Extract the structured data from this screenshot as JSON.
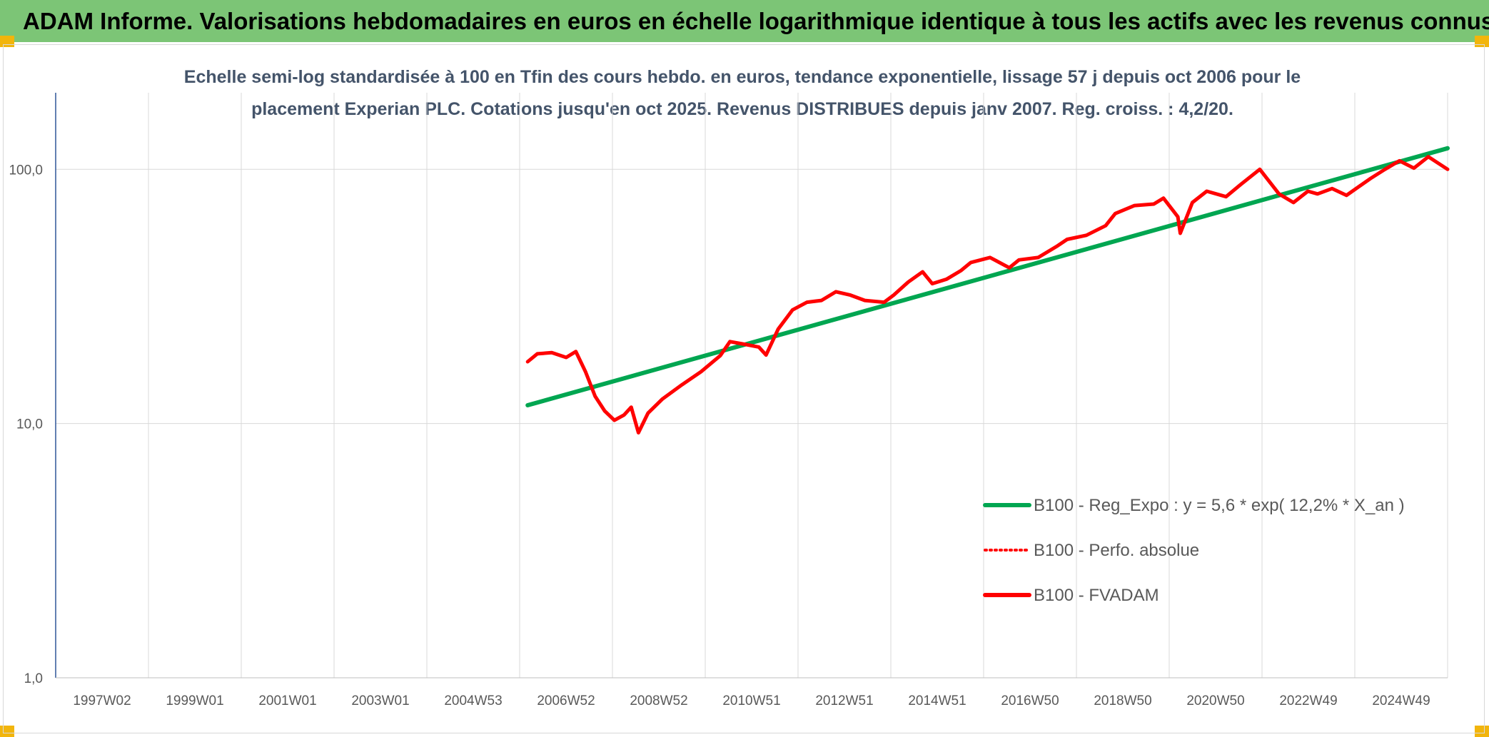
{
  "banner": {
    "text": "ADAM Informe. Valorisations hebdomadaires en euros en échelle logarithmique identique à tous les actifs avec les revenus connus distribués"
  },
  "colors": {
    "banner_bg": "#7cc576",
    "corner": "#f2b50c",
    "trend": "#00a651",
    "perf": "#ff0000",
    "fvadam": "#ff0000",
    "title": "#44546a",
    "grid": "#d9d9d9"
  },
  "chart_data": {
    "type": "line",
    "title_lines": [
      "Echelle semi-log standardisée à 100 en Tfin des cours hebdo. en euros, tendance exponentielle, lissage 57 j depuis oct 2006 pour le",
      "placement Experian PLC. Cotations jusqu'en oct 2025. Revenus DISTRIBUES depuis janv 2007. Reg. croiss. : 4,2/20."
    ],
    "y_scale": "log",
    "ylim": [
      1,
      200
    ],
    "y_ticks": [
      {
        "value": 100,
        "label": "100,0"
      },
      {
        "value": 10,
        "label": "10,0"
      },
      {
        "value": 1,
        "label": "1,0"
      }
    ],
    "xlim": [
      1997.0,
      2025.9
    ],
    "x_ticks": [
      {
        "value": 1997.0,
        "label": "1997W02"
      },
      {
        "value": 1999.0,
        "label": "1999W01"
      },
      {
        "value": 2001.0,
        "label": "2001W01"
      },
      {
        "value": 2003.0,
        "label": "2003W01"
      },
      {
        "value": 2005.0,
        "label": "2004W53"
      },
      {
        "value": 2007.0,
        "label": "2006W52"
      },
      {
        "value": 2009.0,
        "label": "2008W52"
      },
      {
        "value": 2011.0,
        "label": "2010W51"
      },
      {
        "value": 2013.0,
        "label": "2012W51"
      },
      {
        "value": 2015.0,
        "label": "2014W51"
      },
      {
        "value": 2017.0,
        "label": "2016W50"
      },
      {
        "value": 2019.0,
        "label": "2018W50"
      },
      {
        "value": 2021.0,
        "label": "2020W50"
      },
      {
        "value": 2023.0,
        "label": "2022W49"
      },
      {
        "value": 2025.0,
        "label": "2024W49"
      }
    ],
    "grid": "vertical-and-horizontal",
    "legend": {
      "position": "right-lower",
      "entries": [
        {
          "label": "B100 - Reg_Expo : y = 5,6 * exp( 12,2% *  X_an )",
          "style": "solid-green"
        },
        {
          "label": "B100 - Perfo. absolue",
          "style": "dotted-red"
        },
        {
          "label": "B100 - FVADAM",
          "style": "solid-red"
        }
      ]
    },
    "series": [
      {
        "name": "B100 - Reg_Expo : y = 5,6 * exp( 12,2% *  X_an )",
        "x": [
          2006.8,
          2025.9
        ],
        "y": [
          11.8,
          121
        ]
      },
      {
        "name": "B100 - Perfo. absolue",
        "x": [],
        "y": []
      },
      {
        "name": "B100 - FVADAM",
        "x": [
          2006.8,
          2007.0,
          2007.3,
          2007.6,
          2007.8,
          2008.0,
          2008.2,
          2008.4,
          2008.6,
          2008.8,
          2008.95,
          2009.1,
          2009.3,
          2009.6,
          2010.0,
          2010.4,
          2010.8,
          2011.0,
          2011.3,
          2011.6,
          2011.75,
          2012.0,
          2012.3,
          2012.6,
          2012.9,
          2013.2,
          2013.5,
          2013.8,
          2014.2,
          2014.4,
          2014.7,
          2015.0,
          2015.2,
          2015.5,
          2015.8,
          2016.0,
          2016.4,
          2016.8,
          2017.0,
          2017.4,
          2017.8,
          2018.0,
          2018.4,
          2018.8,
          2019.0,
          2019.4,
          2019.8,
          2020.0,
          2020.3,
          2020.35,
          2020.6,
          2020.9,
          2021.3,
          2021.6,
          2022.0,
          2022.4,
          2022.7,
          2023.0,
          2023.2,
          2023.5,
          2023.8,
          2024.0,
          2024.3,
          2024.6,
          2024.9,
          2025.2,
          2025.5,
          2025.9
        ],
        "y": [
          17.5,
          18.8,
          19.0,
          18.2,
          19.2,
          16.0,
          12.8,
          11.2,
          10.3,
          10.8,
          11.6,
          9.2,
          11.0,
          12.5,
          14.2,
          16.0,
          18.5,
          21.0,
          20.5,
          20.0,
          18.6,
          23.5,
          28.0,
          30.0,
          30.5,
          33.0,
          32.0,
          30.5,
          30.0,
          32.0,
          36.0,
          39.5,
          35.5,
          37.0,
          40.0,
          43.0,
          45.0,
          41.0,
          44.0,
          45.0,
          50.0,
          53.0,
          55.0,
          60.0,
          67.0,
          72.0,
          73.0,
          77.0,
          65.0,
          56.0,
          74.0,
          82.0,
          78.0,
          87.0,
          100.0,
          80.0,
          74.0,
          82.0,
          80.0,
          84.0,
          79.0,
          84.0,
          92.0,
          100.0,
          108.0,
          101.0,
          112.0,
          100.0
        ]
      }
    ]
  }
}
